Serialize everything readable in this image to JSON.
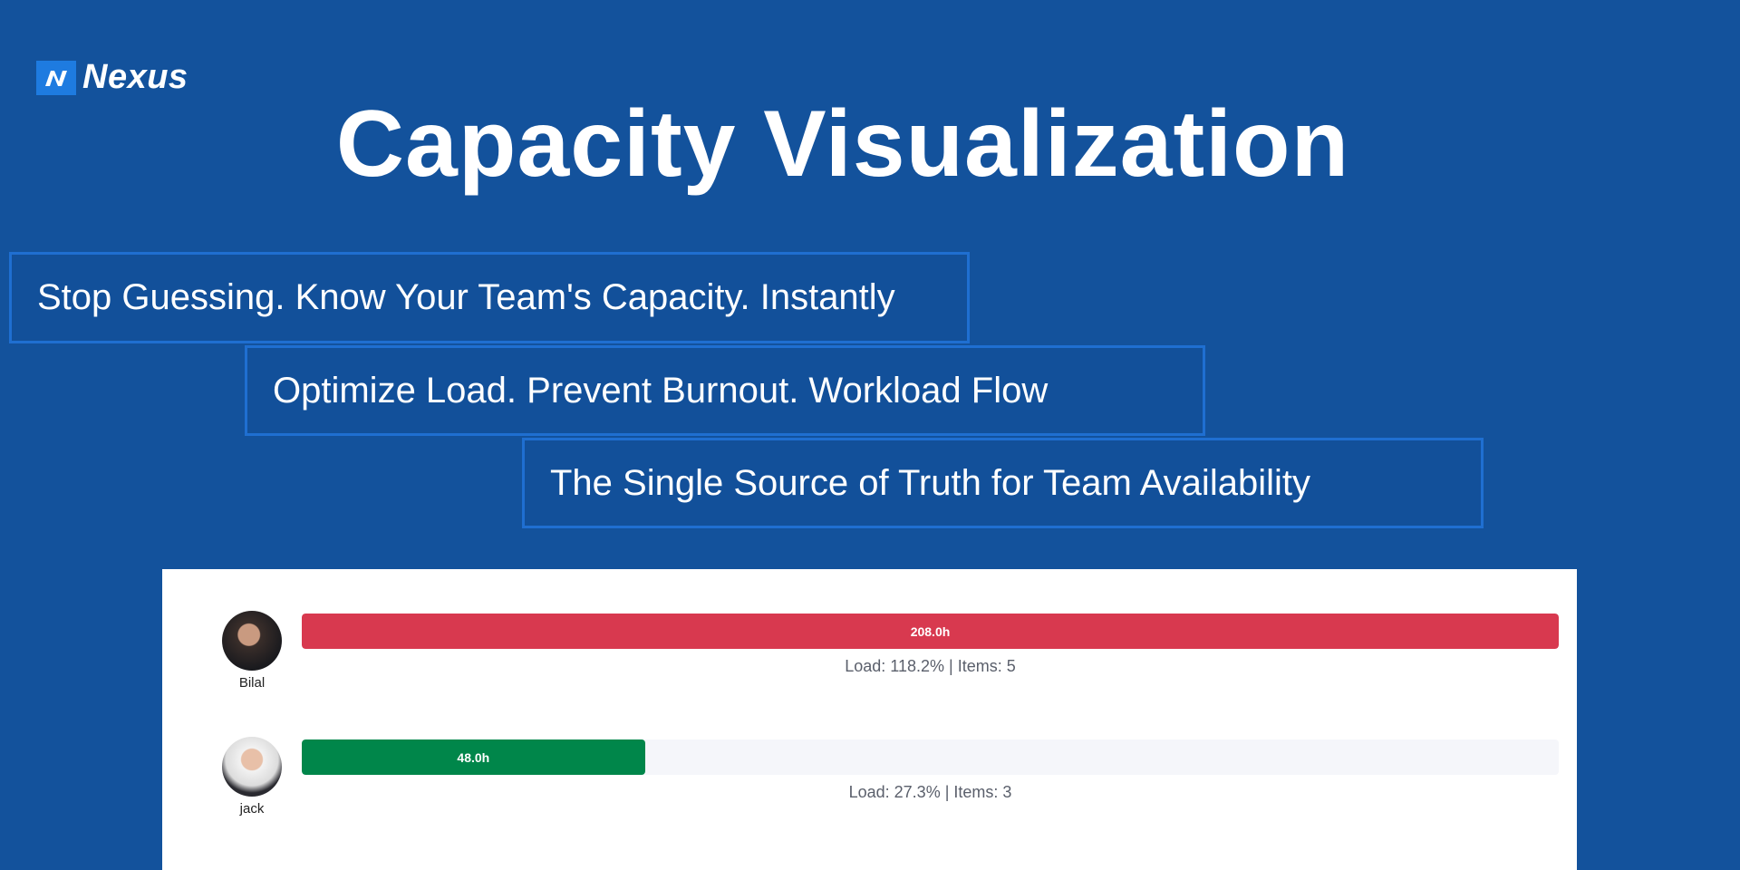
{
  "brand": {
    "name": "Nexus",
    "logo_icon": "nexus-logo-mark",
    "accent": "#1e7be0"
  },
  "title": "Capacity Visualization",
  "taglines": [
    "Stop Guessing. Know Your Team's Capacity. Instantly",
    "Optimize Load. Prevent Burnout. Workload Flow",
    "The Single Source of Truth for Team Availability"
  ],
  "members": [
    {
      "name": "Bilal",
      "hours": "208.0h",
      "load": "Load: 118.2% | Items: 5",
      "load_percent": 118.2,
      "bar_color": "#d8394f"
    },
    {
      "name": "jack",
      "hours": "48.0h",
      "load": "Load: 27.3% | Items: 3",
      "load_percent": 27.3,
      "bar_color": "#00864a"
    }
  ],
  "colors": {
    "background": "#13529c",
    "tagline_border": "#1f6fd1",
    "track": "#f5f6fa"
  }
}
